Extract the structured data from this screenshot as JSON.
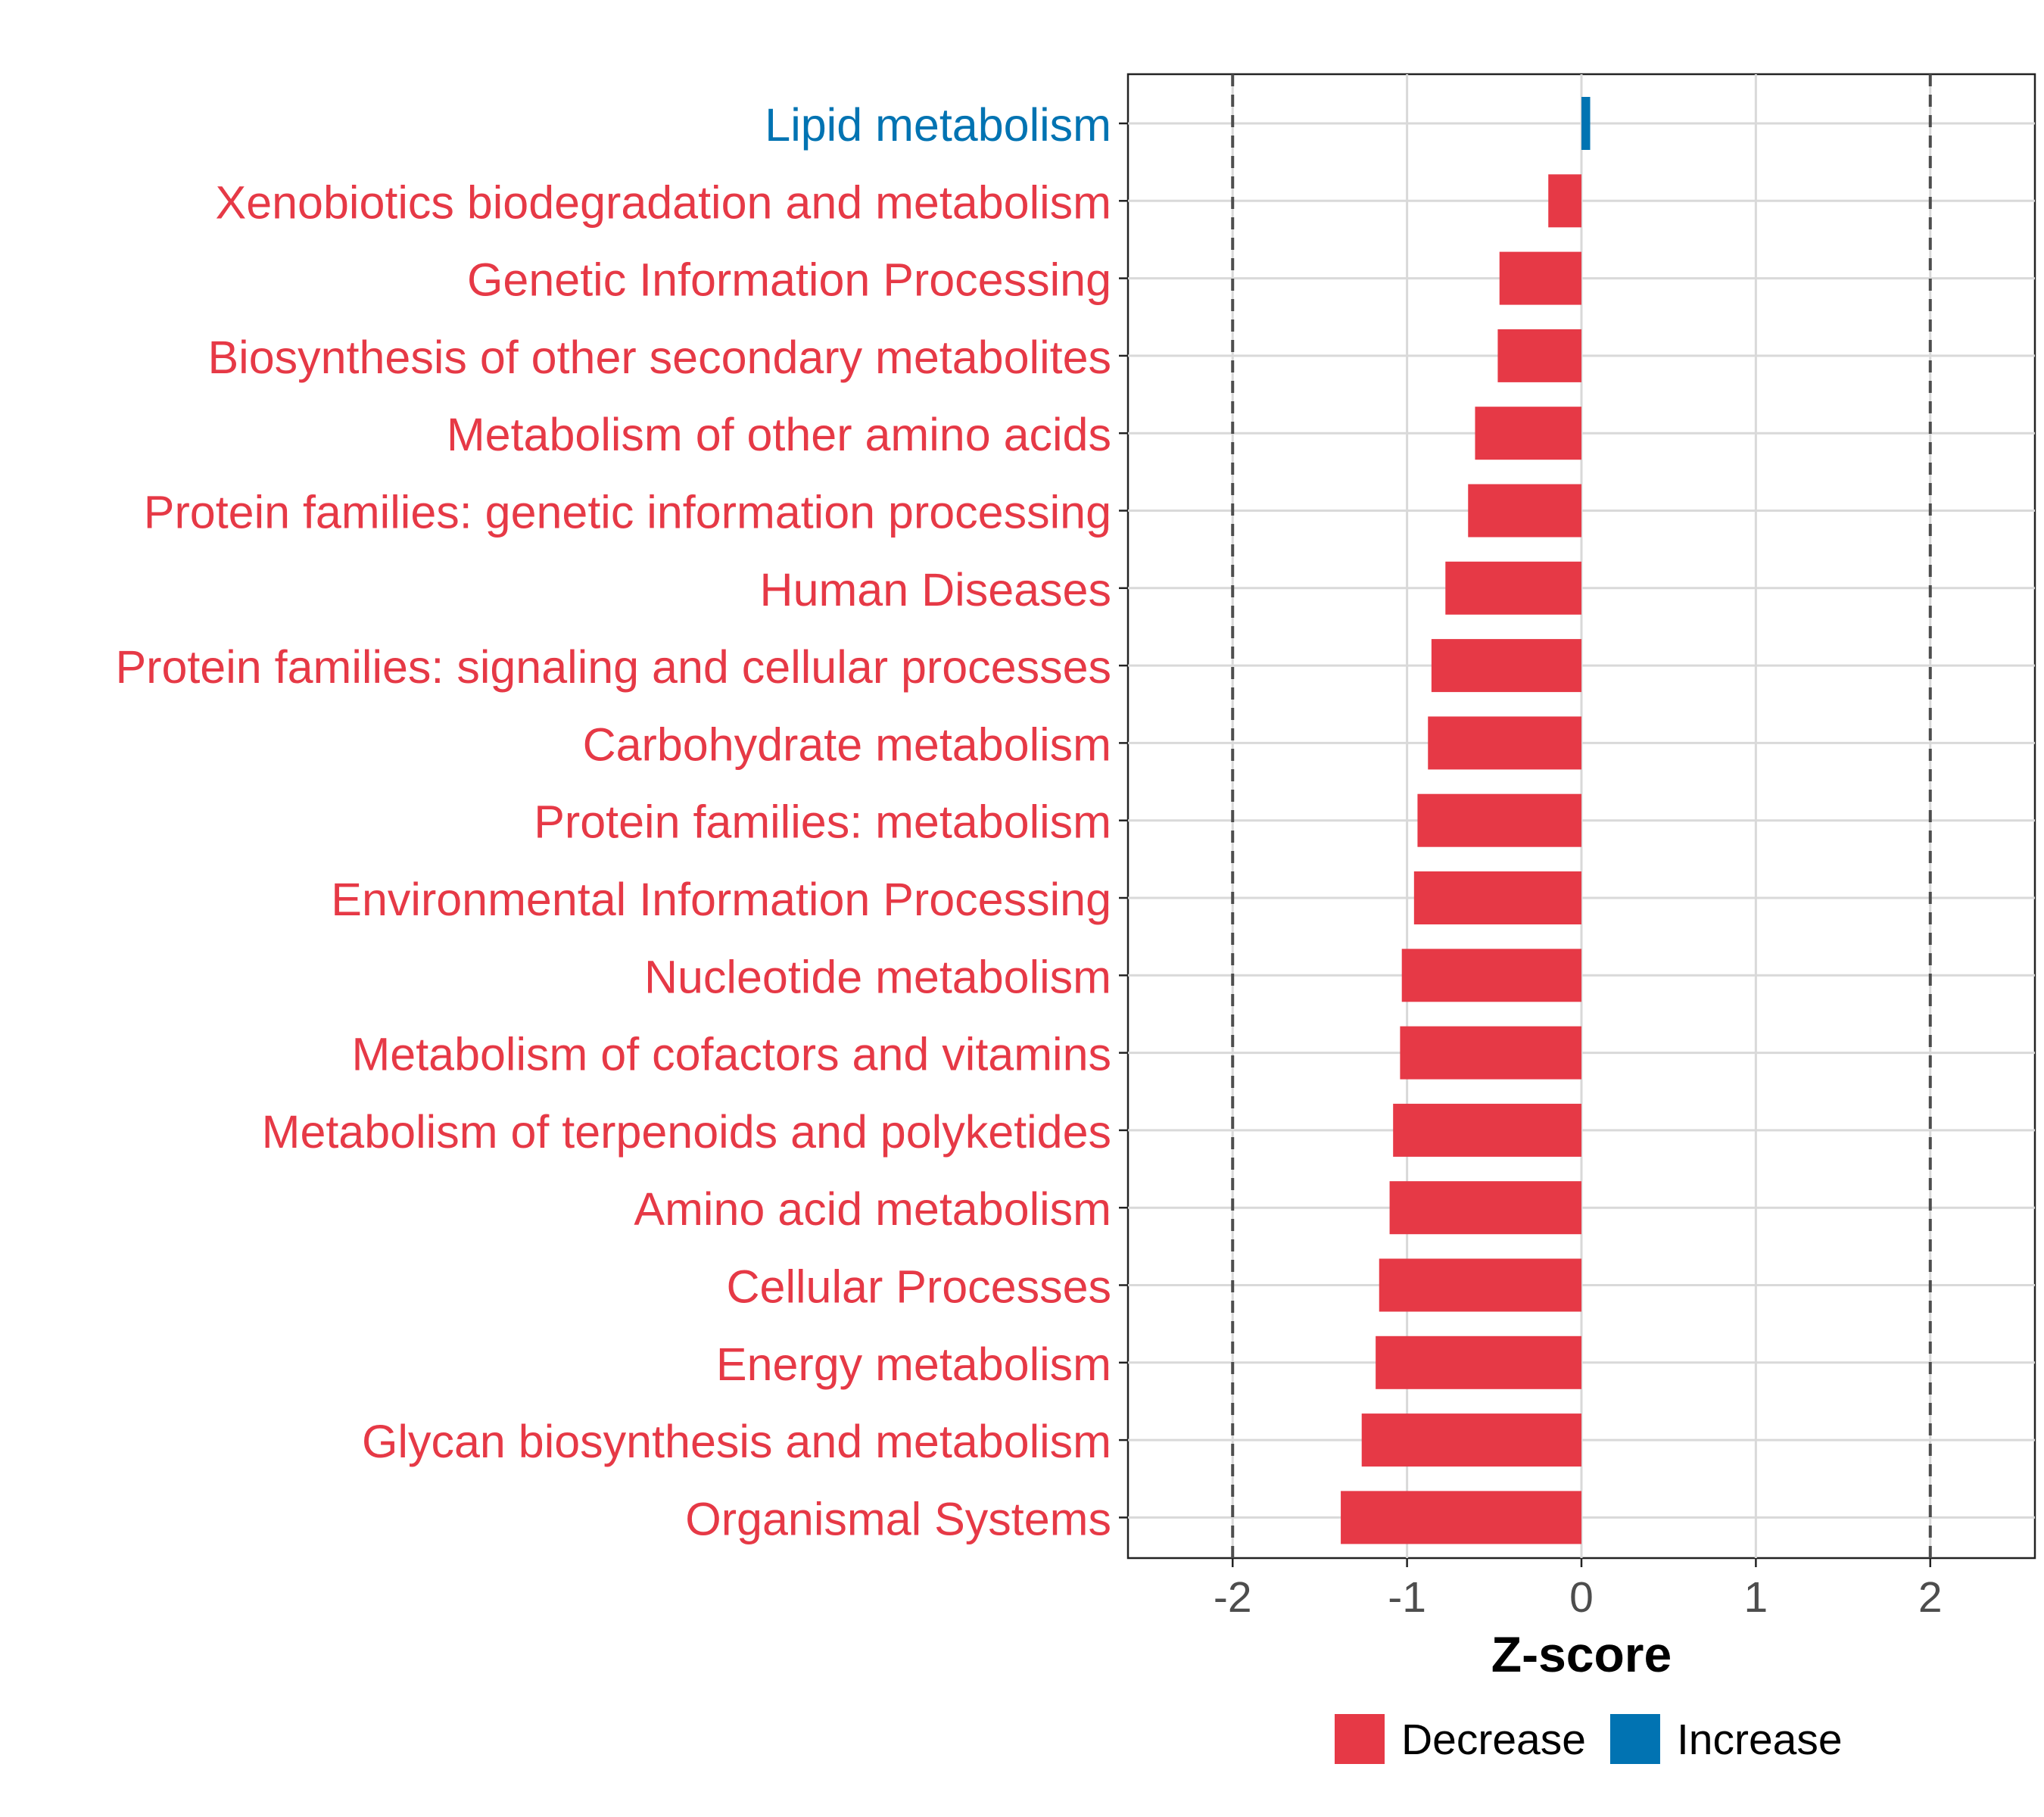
{
  "chart_data": {
    "type": "bar",
    "orientation": "horizontal",
    "title": "",
    "xlabel": "Z-score",
    "ylabel": "",
    "xlim": [
      -2.6,
      2.6
    ],
    "xticks": [
      -2,
      -1,
      0,
      1,
      2
    ],
    "xtick_labels": [
      "-2",
      "-1",
      "0",
      "1",
      "2"
    ],
    "reference_lines": [
      -2,
      2
    ],
    "grid": true,
    "categories": [
      "Lipid metabolism",
      "Xenobiotics biodegradation and metabolism",
      "Genetic Information Processing",
      "Biosynthesis of other secondary metabolites",
      "Metabolism of other amino acids",
      "Protein families: genetic information processing",
      "Human Diseases",
      "Protein families: signaling and cellular processes",
      "Carbohydrate metabolism",
      "Protein families: metabolism",
      "Environmental Information Processing",
      "Nucleotide metabolism",
      "Metabolism of cofactors and vitamins",
      "Metabolism of terpenoids and polyketides",
      "Amino acid metabolism",
      "Cellular Processes",
      "Energy metabolism",
      "Glycan biosynthesis and metabolism",
      "Organismal Systems"
    ],
    "values": [
      0.05,
      -0.19,
      -0.47,
      -0.48,
      -0.61,
      -0.65,
      -0.78,
      -0.86,
      -0.88,
      -0.94,
      -0.96,
      -1.03,
      -1.04,
      -1.08,
      -1.1,
      -1.16,
      -1.18,
      -1.26,
      -1.38
    ],
    "groups": [
      "Increase",
      "Decrease",
      "Decrease",
      "Decrease",
      "Decrease",
      "Decrease",
      "Decrease",
      "Decrease",
      "Decrease",
      "Decrease",
      "Decrease",
      "Decrease",
      "Decrease",
      "Decrease",
      "Decrease",
      "Decrease",
      "Decrease",
      "Decrease",
      "Decrease"
    ],
    "legend": {
      "placement": "bottom",
      "entries": [
        {
          "label": "Decrease",
          "color": "#E63946"
        },
        {
          "label": "Increase",
          "color": "#0173B2"
        }
      ]
    },
    "colors": {
      "Decrease": "#E63946",
      "Increase": "#0173B2"
    }
  }
}
